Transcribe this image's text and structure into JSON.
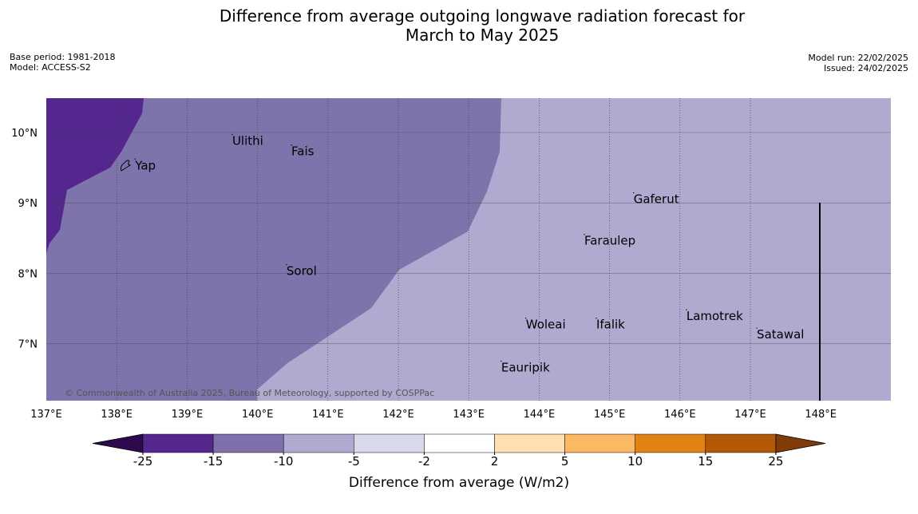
{
  "title": {
    "line1": "Difference from average outgoing longwave radiation forecast for",
    "line2": "March to May 2025"
  },
  "meta_left": {
    "base_period": "Base period: 1981-2018",
    "model": "Model: ACCESS-S2"
  },
  "meta_right": {
    "model_run": "Model run: 22/02/2025",
    "issued": "Issued: 24/02/2025"
  },
  "map": {
    "lon_ticks": [
      "137°E",
      "138°E",
      "139°E",
      "140°E",
      "141°E",
      "142°E",
      "143°E",
      "144°E",
      "145°E",
      "146°E",
      "147°E",
      "148°E"
    ],
    "lat_ticks": [
      "10°N",
      "9°N",
      "8°N",
      "7°N"
    ],
    "places": [
      {
        "name": "Yap",
        "lon": 138.25,
        "lat": 9.52
      },
      {
        "name": "Ulithi",
        "lon": 139.63,
        "lat": 9.87
      },
      {
        "name": "Fais",
        "lon": 140.47,
        "lat": 9.72
      },
      {
        "name": "Gaferut",
        "lon": 145.33,
        "lat": 9.04
      },
      {
        "name": "Faraulep",
        "lon": 144.63,
        "lat": 8.45
      },
      {
        "name": "Sorol",
        "lon": 140.4,
        "lat": 8.02
      },
      {
        "name": "Lamotrek",
        "lon": 146.08,
        "lat": 7.38
      },
      {
        "name": "Woleai",
        "lon": 143.8,
        "lat": 7.26
      },
      {
        "name": "Ifalik",
        "lon": 144.8,
        "lat": 7.26
      },
      {
        "name": "Satawal",
        "lon": 147.08,
        "lat": 7.12
      },
      {
        "name": "Eauripik",
        "lon": 143.45,
        "lat": 6.65
      }
    ],
    "copyright": "© Commonwealth of Australia 2025, Bureau of Meteorology, supported by COSPPac"
  },
  "legend": {
    "title": "Difference from average (W/m2)",
    "ticks": [
      "-25",
      "-15",
      "-10",
      "-5",
      "-2",
      "2",
      "5",
      "10",
      "15",
      "25"
    ],
    "colors": [
      "#2d0a4e",
      "#54278f",
      "#7f6fab",
      "#b0a9d0",
      "#d9d9ec",
      "#ffffff",
      "#ffe0b3",
      "#fdb863",
      "#e08214",
      "#b35806",
      "#7f3b08"
    ]
  }
}
